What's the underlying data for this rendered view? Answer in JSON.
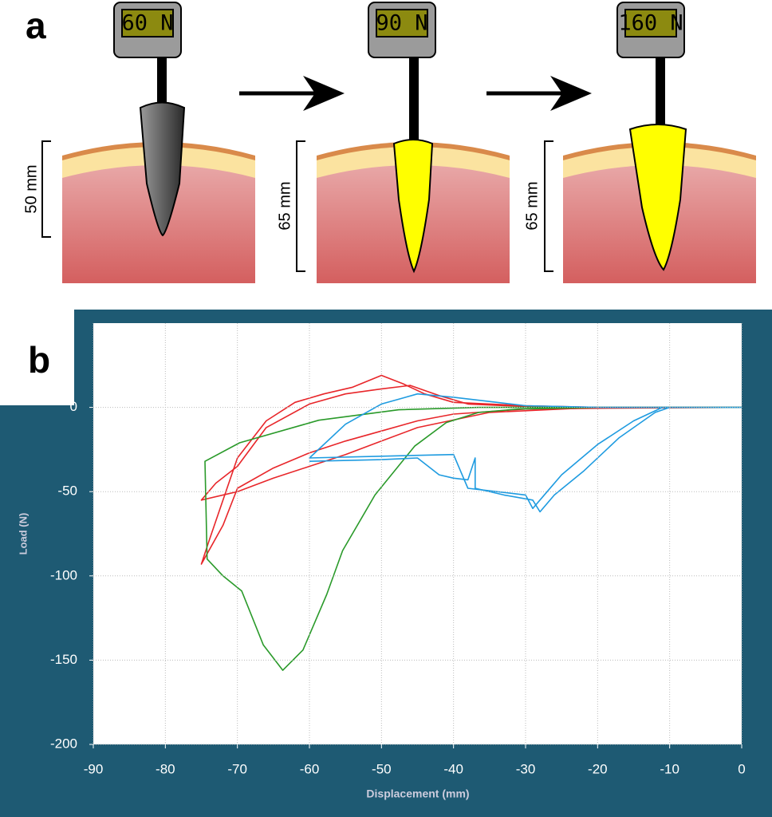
{
  "panel_a": {
    "label": "a",
    "stages": [
      {
        "force": "60 N",
        "depth": "50 mm"
      },
      {
        "force": "90 N",
        "depth": "65 mm"
      },
      {
        "force": "160 N",
        "depth": "65 mm"
      }
    ]
  },
  "chart_data": {
    "type": "line",
    "panel_label": "b",
    "xlabel": "Displacement (mm)",
    "ylabel": "Load (N)",
    "xlim": [
      -90,
      0
    ],
    "xticks": [
      -90,
      -80,
      -70,
      -60,
      -50,
      -40,
      -30,
      -20,
      -10,
      0
    ],
    "ylim": [
      -200,
      50
    ],
    "yticks": [
      -200,
      -150,
      -100,
      -50,
      0
    ],
    "grid": true,
    "series": [
      {
        "color": "#e8262a",
        "x": [
          0,
          -20,
          -30,
          -40,
          -45,
          -50,
          -55,
          -60,
          -65,
          -70,
          -72,
          -75,
          -74,
          -70,
          -66,
          -62,
          -58,
          -54,
          -50,
          -47,
          -44,
          -40,
          -30,
          -20,
          0
        ],
        "values": [
          0,
          -0.5,
          -1,
          -4,
          -8,
          -14,
          -20,
          -27,
          -36,
          -48,
          -70,
          -93,
          -80,
          -30,
          -8,
          3,
          8,
          12,
          19,
          14,
          8,
          3,
          1,
          0,
          0
        ]
      },
      {
        "color": "#e8262a",
        "x": [
          -20,
          -35,
          -45,
          -50,
          -55,
          -60,
          -65,
          -70,
          -75,
          -73,
          -70,
          -66,
          -60,
          -55,
          -50,
          -46,
          -42,
          -38,
          -30,
          -20
        ],
        "values": [
          0,
          -3,
          -12,
          -20,
          -28,
          -35,
          -42,
          -50,
          -55,
          -45,
          -35,
          -12,
          2,
          8,
          11,
          13,
          7,
          2,
          0.5,
          0
        ]
      },
      {
        "color": "#2a9a2a",
        "x": [
          0,
          -20,
          -36.5,
          -47.6,
          -58.7,
          -69.7,
          -74.5,
          -74.2,
          -72,
          -69.4,
          -66.4,
          -63.7,
          -60.9,
          -57.6,
          -55.4,
          -50.9,
          -45.4,
          -41,
          -36.5,
          -31,
          -20
        ],
        "values": [
          0,
          0,
          0,
          -1.4,
          -7.6,
          -21,
          -32,
          -90,
          -100,
          -109,
          -141,
          -156,
          -144,
          -111,
          -85,
          -52,
          -23,
          -9,
          -3,
          -1,
          0
        ]
      },
      {
        "color": "#1e9be0",
        "x": [
          0,
          -10,
          -20,
          -30,
          -40,
          -45,
          -50,
          -55,
          -60,
          -50,
          -40,
          -39,
          -38,
          -34,
          -30,
          -29,
          -27,
          -25,
          -20,
          -15,
          -11,
          0
        ],
        "values": [
          0,
          0,
          0,
          1,
          6,
          8,
          2,
          -10,
          -30,
          -29,
          -28,
          -38,
          -48,
          -50,
          -52,
          -60,
          -50,
          -40,
          -22,
          -8,
          0,
          0
        ]
      },
      {
        "color": "#1e9be0",
        "x": [
          -60,
          -50,
          -45,
          -42,
          -40,
          -38,
          -37,
          -37,
          -33,
          -29,
          -28,
          -26,
          -22,
          -17,
          -12,
          -10
        ],
        "values": [
          -32,
          -31,
          -30,
          -40,
          -42,
          -43,
          -30,
          -48,
          -52,
          -55,
          -62,
          -52,
          -38,
          -18,
          -3,
          0
        ]
      }
    ]
  }
}
